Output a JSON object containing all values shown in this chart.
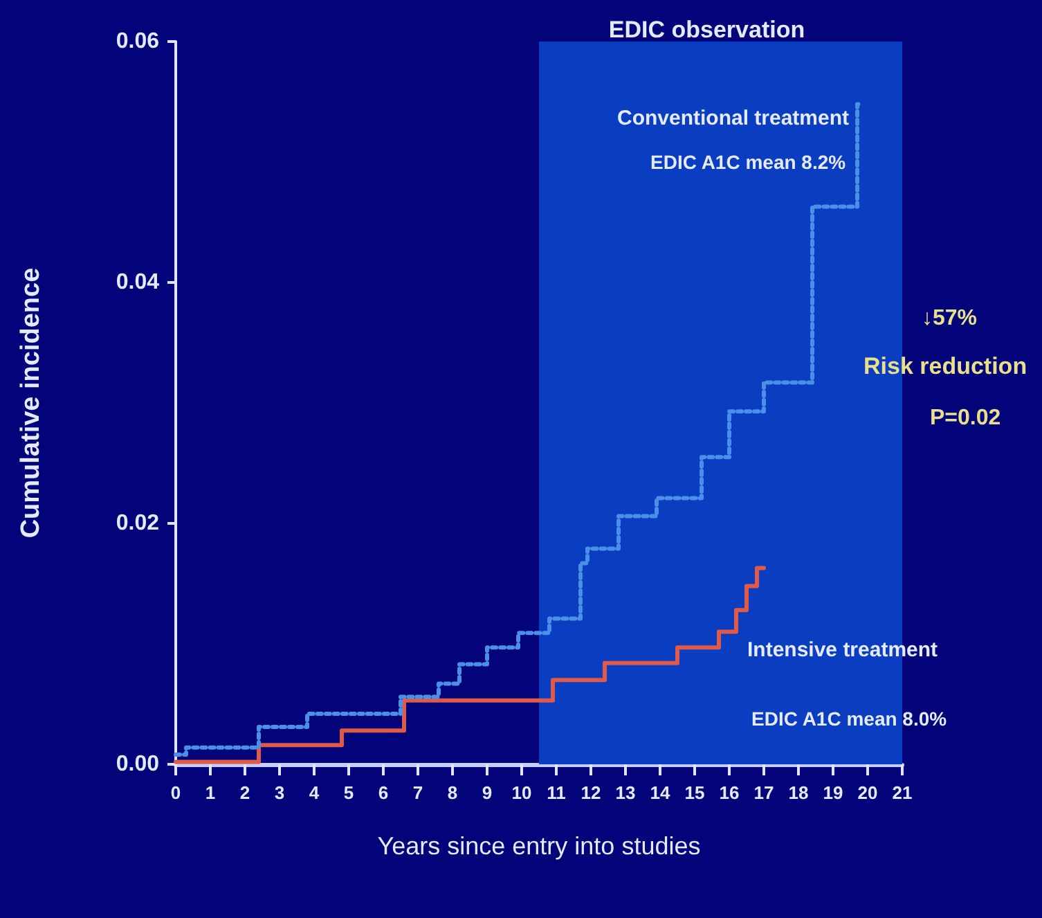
{
  "chart_data": {
    "type": "step",
    "xlabel": "Years since entry into studies",
    "ylabel": "Cumulative incidence",
    "xlim": [
      0,
      21
    ],
    "xticks": [
      0,
      1,
      2,
      3,
      4,
      5,
      6,
      7,
      8,
      9,
      10,
      11,
      12,
      13,
      14,
      15,
      16,
      17,
      18,
      19,
      20,
      21
    ],
    "ylim": [
      0,
      0.06
    ],
    "yticks": [
      {
        "value": 0,
        "label": "0.00"
      },
      {
        "value": 0.02,
        "label": "0.02"
      },
      {
        "value": 0.04,
        "label": "0.04"
      },
      {
        "value": 0.06,
        "label": "0.06"
      }
    ],
    "series": [
      {
        "name": "Conventional treatment",
        "color": "#4a8fe8",
        "line_style": "dotted",
        "x": [
          0,
          0.3,
          2.4,
          3.8,
          6.5,
          7.6,
          8.2,
          9.0,
          9.9,
          10.8,
          11.7,
          11.9,
          12.8,
          13.9,
          15.2,
          16.0,
          17.0,
          18.4,
          19.7,
          19.8
        ],
        "values": [
          0.0008,
          0.0014,
          0.0031,
          0.0042,
          0.0056,
          0.0067,
          0.0083,
          0.0097,
          0.0109,
          0.0121,
          0.0167,
          0.0179,
          0.0206,
          0.0221,
          0.0255,
          0.0293,
          0.0317,
          0.0463,
          0.0548,
          0.0548
        ]
      },
      {
        "name": "Intensive treatment",
        "color": "#e05a4a",
        "line_style": "solid",
        "x": [
          0,
          2.4,
          4.8,
          6.6,
          10.9,
          12.4,
          14.5,
          15.7,
          16.2,
          16.5,
          16.8,
          17.0
        ],
        "values": [
          0.0002,
          0.0016,
          0.0028,
          0.0053,
          0.007,
          0.0084,
          0.0097,
          0.011,
          0.0128,
          0.0148,
          0.0163,
          0.0163
        ]
      }
    ],
    "bands": [
      {
        "axis": "x",
        "from": 10.5,
        "to": 21,
        "label": "EDIC observation",
        "color": "#0a3dbf"
      }
    ],
    "annotations": [
      "EDIC A1C mean 8.2%",
      "EDIC A1C mean 8.0%",
      "↓57%",
      "Risk reduction",
      "P=0.02"
    ],
    "marker": "none",
    "grid": false,
    "legend": false
  }
}
